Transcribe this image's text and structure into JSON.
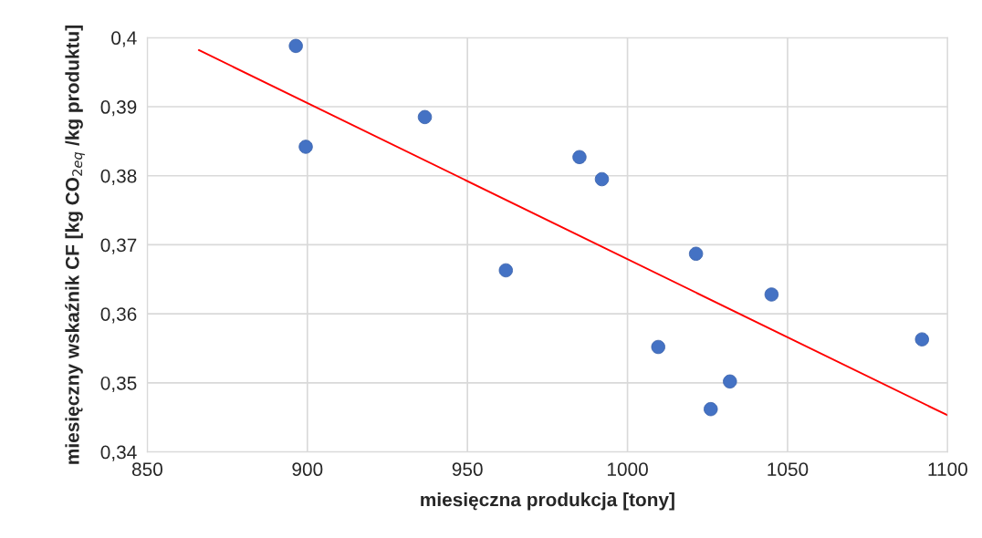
{
  "chart_data": {
    "type": "scatter",
    "xlabel": "miesięczna produkcja [tony]",
    "ylabel": "miesięczny wskaźnik CF [kg CO$_{2eq}$ /kg produktu]",
    "xlim": [
      850,
      1100
    ],
    "xticks": [
      850,
      900,
      950,
      1000,
      1050,
      1100
    ],
    "ylim": [
      0.34,
      0.4
    ],
    "yticks": [
      {
        "value": 0.34,
        "label": "0,34"
      },
      {
        "value": 0.35,
        "label": "0,35"
      },
      {
        "value": 0.36,
        "label": "0,36"
      },
      {
        "value": 0.37,
        "label": "0,37"
      },
      {
        "value": 0.38,
        "label": "0,38"
      },
      {
        "value": 0.39,
        "label": "0,39"
      },
      {
        "value": 0.4,
        "label": "0,4"
      }
    ],
    "grid": true,
    "series": [
      {
        "color": "#4472c4",
        "marker": "circle",
        "x": [
          896.4,
          899.5,
          936.7,
          962,
          985,
          992,
          1009.6,
          1021.4,
          1026,
          1032,
          1045,
          1092
        ],
        "values": [
          0.3988,
          0.3842,
          0.3885,
          0.3663,
          0.3827,
          0.3795,
          0.3552,
          0.3687,
          0.3462,
          0.3502,
          0.3628,
          0.3563
        ]
      },
      {
        "type": "line",
        "color": "#ff0000",
        "marker": "none",
        "x": [
          866.1,
          1100
        ],
        "values": [
          0.3982,
          0.3453
        ]
      }
    ]
  }
}
